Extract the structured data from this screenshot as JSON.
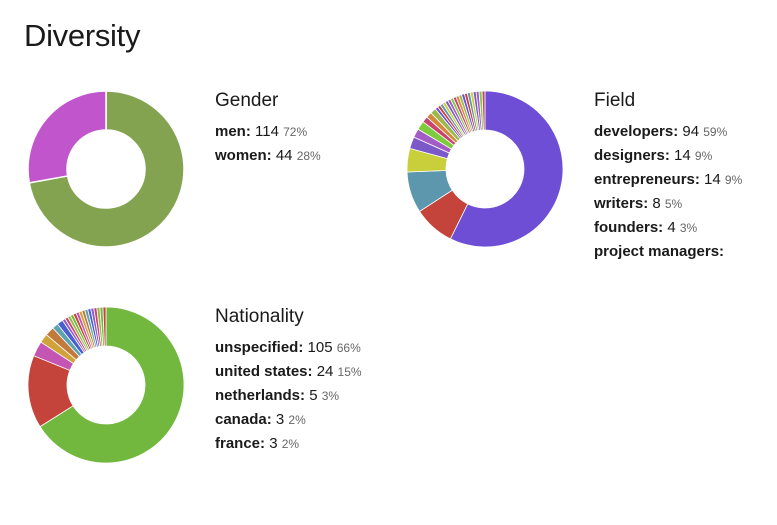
{
  "page": {
    "title": "Diversity"
  },
  "chart_data": [
    {
      "id": "gender",
      "type": "pie",
      "title": "Gender",
      "categories": [
        "men",
        "women"
      ],
      "values": [
        114,
        44
      ],
      "percent_labels": [
        "72%",
        "28%"
      ],
      "colors": [
        "#83a350",
        "#c055cc"
      ]
    },
    {
      "id": "field",
      "type": "pie",
      "title": "Field",
      "categories": [
        "developers",
        "designers",
        "entrepreneurs",
        "writers",
        "founders",
        "project managers:"
      ],
      "values": [
        94,
        14,
        14,
        8,
        4,
        null
      ],
      "percent_labels": [
        "59%",
        "9%",
        "9%",
        "5%",
        "3%",
        ""
      ],
      "colors": [
        "#6e4ed4",
        "#c4433a",
        "#5d97ad",
        "#c9cf3b",
        "#7b59c9",
        "#a35cc6",
        "#7ecb3e",
        "#c84370",
        "#d28a3a",
        "#9cb84a"
      ],
      "other_values": [
        3,
        3,
        2,
        2,
        2,
        1,
        1,
        1,
        1,
        1,
        1,
        1,
        1,
        1,
        1,
        1,
        1,
        1,
        1,
        1,
        1,
        1,
        1
      ]
    },
    {
      "id": "nationality",
      "type": "pie",
      "title": "Nationality",
      "categories": [
        "unspecified",
        "united states",
        "netherlands",
        "canada",
        "france"
      ],
      "values": [
        105,
        24,
        5,
        3,
        3
      ],
      "percent_labels": [
        "66%",
        "15%",
        "3%",
        "2%",
        "2%"
      ],
      "colors": [
        "#72b83e",
        "#c4433a",
        "#c455b3",
        "#d0a23a",
        "#c27a3a",
        "#5ea3b0",
        "#4a5fcf",
        "#8e5bc9",
        "#c84370",
        "#9cb84a"
      ],
      "other_values": [
        2,
        2,
        1,
        1,
        1,
        1,
        1,
        1,
        1,
        1,
        1,
        1,
        1,
        1,
        1,
        1,
        1
      ]
    }
  ]
}
